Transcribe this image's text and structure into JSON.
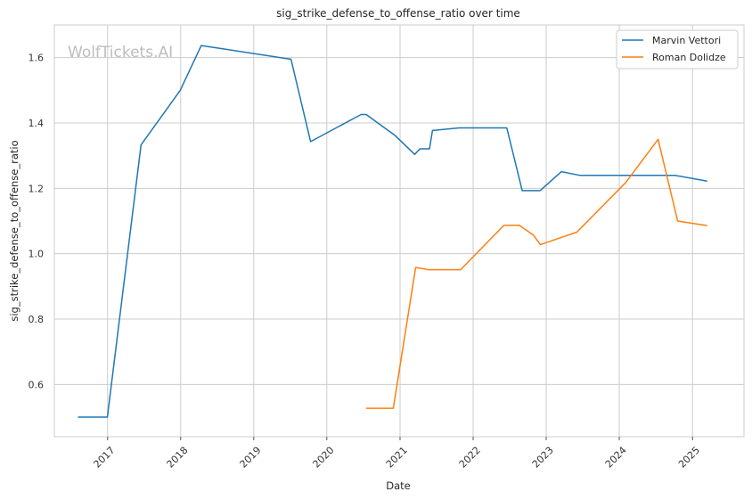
{
  "chart_data": {
    "type": "line",
    "title": "sig_strike_defense_to_offense_ratio over time",
    "xlabel": "Date",
    "ylabel": "sig_strike_defense_to_offense_ratio",
    "watermark": "WolfTickets.AI",
    "xlim": [
      "2016-04-10",
      "2025-09-15"
    ],
    "ylim": [
      0.44,
      1.7
    ],
    "x_ticks": [
      "2017",
      "2018",
      "2019",
      "2020",
      "2021",
      "2022",
      "2023",
      "2024",
      "2025"
    ],
    "y_ticks": [
      0.6,
      0.8,
      1.0,
      1.2,
      1.4,
      1.6
    ],
    "y_tick_labels": [
      "0.6",
      "0.8",
      "1.0",
      "1.2",
      "1.4",
      "1.6"
    ],
    "grid": true,
    "legend_position": "top-right",
    "series": [
      {
        "name": "Marvin Vettori",
        "color": "#1f77b4",
        "points": [
          [
            "2016-08-06",
            0.5
          ],
          [
            "2016-12-31",
            0.5
          ],
          [
            "2017-06-17",
            1.333
          ],
          [
            "2017-12-30",
            1.5
          ],
          [
            "2018-04-14",
            1.637
          ],
          [
            "2019-07-06",
            1.595
          ],
          [
            "2019-10-12",
            1.343
          ],
          [
            "2020-06-20",
            1.426
          ],
          [
            "2020-07-16",
            1.426
          ],
          [
            "2020-12-05",
            1.363
          ],
          [
            "2021-03-15",
            1.304
          ],
          [
            "2021-04-10",
            1.321
          ],
          [
            "2021-05-28",
            1.321
          ],
          [
            "2021-06-12",
            1.377
          ],
          [
            "2021-10-23",
            1.385
          ],
          [
            "2022-06-18",
            1.385
          ],
          [
            "2022-09-03",
            1.193
          ],
          [
            "2022-12-01",
            1.193
          ],
          [
            "2023-03-18",
            1.251
          ],
          [
            "2023-06-17",
            1.24
          ],
          [
            "2024-10-05",
            1.24
          ],
          [
            "2025-03-15",
            1.222
          ]
        ]
      },
      {
        "name": "Roman Dolidze",
        "color": "#ff7f0e",
        "points": [
          [
            "2020-07-16",
            0.527
          ],
          [
            "2020-11-28",
            0.527
          ],
          [
            "2021-03-20",
            0.958
          ],
          [
            "2021-04-20",
            0.955
          ],
          [
            "2021-05-22",
            0.951
          ],
          [
            "2021-10-30",
            0.951
          ],
          [
            "2022-06-04",
            1.087
          ],
          [
            "2022-08-20",
            1.087
          ],
          [
            "2022-10-29",
            1.057
          ],
          [
            "2022-12-03",
            1.028
          ],
          [
            "2023-06-03",
            1.066
          ],
          [
            "2024-02-03",
            1.218
          ],
          [
            "2024-07-13",
            1.35
          ],
          [
            "2024-10-19",
            1.1
          ],
          [
            "2025-03-15",
            1.086
          ]
        ]
      }
    ]
  }
}
